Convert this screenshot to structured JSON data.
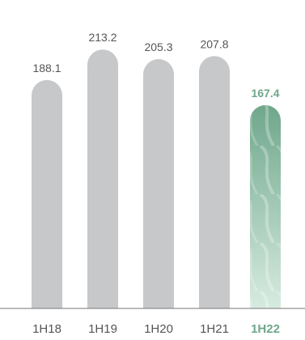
{
  "chart_data": {
    "type": "bar",
    "categories": [
      "1H18",
      "1H19",
      "1H20",
      "1H21",
      "1H22"
    ],
    "values": [
      188.1,
      213.2,
      205.3,
      207.8,
      167.4
    ],
    "value_labels": [
      "188.1",
      "213.2",
      "205.3",
      "207.8",
      "167.4"
    ],
    "highlight_index": 4,
    "ylim": [
      0,
      220
    ],
    "grid": false,
    "legend": "none",
    "title": "",
    "xlabel": "",
    "ylabel": ""
  },
  "colors": {
    "bar": "#c7c8ca",
    "highlight_top": "#6fa78b",
    "highlight_bottom": "#d7ebe0",
    "label_text": "#555555",
    "highlight_text": "#6fa78b",
    "axis": "#777777"
  }
}
